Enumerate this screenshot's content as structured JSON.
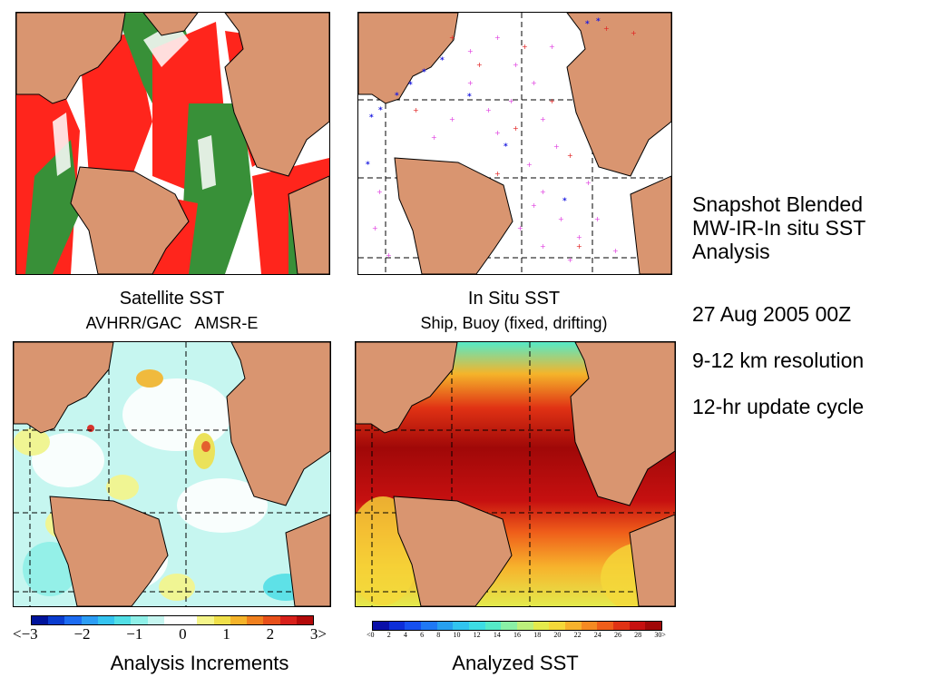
{
  "panels": {
    "satellite": {
      "title": "Satellite SST",
      "subtitle": "AVHRR/GAC   AMSR-E"
    },
    "insitu": {
      "title": "In Situ SST",
      "subtitle": "Ship, Buoy (fixed, drifting)"
    },
    "increments": {
      "title": "Analysis Increments"
    },
    "analyzed": {
      "title": "Analyzed SST"
    }
  },
  "side_text": {
    "heading_line1": "Snapshot Blended",
    "heading_line2": "MW-IR-In situ SST",
    "heading_line3": "Analysis",
    "date": "27 Aug 2005 00Z",
    "resolution": "9-12 km resolution",
    "cycle": "12-hr update cycle"
  },
  "colorbar_increments": {
    "ticks": [
      "<−3",
      "−2",
      "−1",
      "0",
      "1",
      "2",
      "3>"
    ],
    "colors": [
      "#00139b",
      "#0a3ccf",
      "#1d6cf2",
      "#2c9df5",
      "#35c4f0",
      "#52dfe6",
      "#8ff0e8",
      "#c6f6f0",
      "#ffffff",
      "#ffffff",
      "#f5f58a",
      "#f0e04a",
      "#f5b42a",
      "#f0801e",
      "#e8501a",
      "#d8201a",
      "#b30a0a"
    ]
  },
  "colorbar_sst": {
    "ticks": [
      "<0",
      "2",
      "4",
      "6",
      "8",
      "10",
      "12",
      "14",
      "16",
      "18",
      "20",
      "22",
      "24",
      "26",
      "28",
      "30>"
    ],
    "colors": [
      "#0a0fa8",
      "#0d2ed8",
      "#1650f0",
      "#1f78f5",
      "#27a0f0",
      "#31c4f0",
      "#3ddde4",
      "#55eac8",
      "#8af0a6",
      "#bdf07c",
      "#e4ea4c",
      "#f5d83a",
      "#f7b22c",
      "#f58a22",
      "#ef5e1a",
      "#e03214",
      "#c61010",
      "#a00808"
    ]
  },
  "map_colors": {
    "land": "#d99570",
    "ocean_bg": "#ffffff",
    "satellite_avhrr": "#ff1a10",
    "satellite_amsr": "#2e8b2e",
    "insitu_ship": "#e02020",
    "insitu_buoy_fixed": "#1a1ae0",
    "insitu_buoy_drifting": "#e040e0"
  }
}
